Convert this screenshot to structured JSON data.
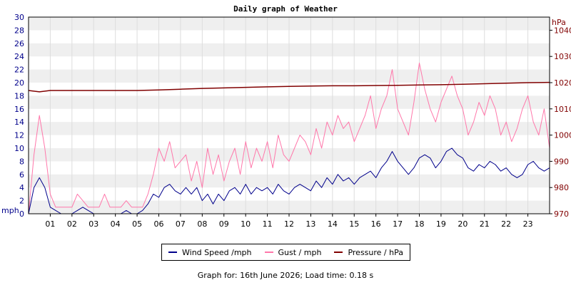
{
  "chart_data": {
    "type": "line",
    "title": "Daily graph of Weather",
    "left_axis": {
      "unit": "mph",
      "ylim": [
        0,
        30
      ],
      "ticks": [
        "0",
        "2",
        "4",
        "6",
        "8",
        "10",
        "12",
        "14",
        "16",
        "18",
        "20",
        "22",
        "24",
        "26",
        "28",
        "30"
      ],
      "color": "#00008b"
    },
    "right_axis": {
      "unit": "hPa",
      "ylim": [
        970,
        1045
      ],
      "ticks": [
        "970",
        "980",
        "990",
        "1000",
        "1010",
        "1020",
        "1030",
        "1040"
      ],
      "color": "#800000"
    },
    "x_ticks": [
      "01",
      "02",
      "03",
      "04",
      "05",
      "06",
      "07",
      "08",
      "09",
      "10",
      "11",
      "12",
      "13",
      "14",
      "15",
      "16",
      "17",
      "18",
      "19",
      "20",
      "21",
      "22",
      "23"
    ],
    "xlim": [
      0,
      24
    ],
    "grid": true,
    "legend_position": "bottom",
    "series": [
      {
        "name": "Wind Speed /mph",
        "axis": "left",
        "color": "#00008b",
        "x": [
          0,
          0.25,
          0.5,
          0.75,
          1,
          1.25,
          1.5,
          1.75,
          2,
          2.25,
          2.5,
          2.75,
          3,
          3.25,
          3.5,
          3.75,
          4,
          4.25,
          4.5,
          4.75,
          5,
          5.25,
          5.5,
          5.75,
          6,
          6.25,
          6.5,
          6.75,
          7,
          7.25,
          7.5,
          7.75,
          8,
          8.25,
          8.5,
          8.75,
          9,
          9.25,
          9.5,
          9.75,
          10,
          10.25,
          10.5,
          10.75,
          11,
          11.25,
          11.5,
          11.75,
          12,
          12.25,
          12.5,
          12.75,
          13,
          13.25,
          13.5,
          13.75,
          14,
          14.25,
          14.5,
          14.75,
          15,
          15.25,
          15.5,
          15.75,
          16,
          16.25,
          16.5,
          16.75,
          17,
          17.25,
          17.5,
          17.75,
          18,
          18.25,
          18.5,
          18.75,
          19,
          19.25,
          19.5,
          19.75,
          20,
          20.25,
          20.5,
          20.75,
          21,
          21.25,
          21.5,
          21.75,
          22,
          22.25,
          22.5,
          22.75,
          23,
          23.25,
          23.5,
          23.75,
          24
        ],
        "values": [
          0,
          4,
          5.5,
          4,
          1,
          0.5,
          0,
          0,
          0,
          0.5,
          1,
          0.5,
          0,
          0,
          0,
          0,
          0,
          0,
          0.5,
          0,
          0,
          0.5,
          1.5,
          3,
          2.5,
          4,
          4.5,
          3.5,
          3,
          4,
          3,
          4,
          2,
          3,
          1.5,
          3,
          2,
          3.5,
          4,
          3,
          4.5,
          3,
          4,
          3.5,
          4,
          3,
          4.5,
          3.5,
          3,
          4,
          4.5,
          4,
          3.5,
          5,
          4,
          5.5,
          4.5,
          6,
          5,
          5.5,
          4.5,
          5.5,
          6,
          6.5,
          5.5,
          7,
          8,
          9.5,
          8,
          7,
          6,
          7,
          8.5,
          9,
          8.5,
          7,
          8,
          9.5,
          10,
          9,
          8.5,
          7,
          6.5,
          7.5,
          7,
          8,
          7.5,
          6.5,
          7,
          6,
          5.5,
          6,
          7.5,
          8,
          7,
          6.5,
          7
        ]
      },
      {
        "name": "Gust / mph",
        "axis": "left",
        "color": "#ff77aa",
        "x": [
          0,
          0.25,
          0.5,
          0.75,
          1,
          1.25,
          1.5,
          1.75,
          2,
          2.25,
          2.5,
          2.75,
          3,
          3.25,
          3.5,
          3.75,
          4,
          4.25,
          4.5,
          4.75,
          5,
          5.25,
          5.5,
          5.75,
          6,
          6.25,
          6.5,
          6.75,
          7,
          7.25,
          7.5,
          7.75,
          8,
          8.25,
          8.5,
          8.75,
          9,
          9.25,
          9.5,
          9.75,
          10,
          10.25,
          10.5,
          10.75,
          11,
          11.25,
          11.5,
          11.75,
          12,
          12.25,
          12.5,
          12.75,
          13,
          13.25,
          13.5,
          13.75,
          14,
          14.25,
          14.5,
          14.75,
          15,
          15.25,
          15.5,
          15.75,
          16,
          16.25,
          16.5,
          16.75,
          17,
          17.25,
          17.5,
          17.75,
          18,
          18.25,
          18.5,
          18.75,
          19,
          19.25,
          19.5,
          19.75,
          20,
          20.25,
          20.5,
          20.75,
          21,
          21.25,
          21.5,
          21.75,
          22,
          22.25,
          22.5,
          22.75,
          23,
          23.25,
          23.5,
          23.75,
          24
        ],
        "values": [
          0,
          9,
          15,
          10,
          3,
          1,
          1,
          1,
          1,
          3,
          2,
          1,
          1,
          1,
          3,
          1,
          1,
          1,
          2,
          1,
          1,
          1,
          3,
          6,
          10,
          8,
          11,
          7,
          8,
          9,
          5,
          8,
          4,
          10,
          6,
          9,
          5,
          8,
          10,
          6,
          11,
          7,
          10,
          8,
          11,
          7,
          12,
          9,
          8,
          10,
          12,
          11,
          9,
          13,
          10,
          14,
          12,
          15,
          13,
          14,
          11,
          13,
          15,
          18,
          13,
          16,
          18,
          22,
          16,
          14,
          12,
          17,
          23,
          19,
          16,
          14,
          17,
          19,
          21,
          18,
          16,
          12,
          14,
          17,
          15,
          18,
          16,
          12,
          14,
          11,
          13,
          16,
          18,
          14,
          12,
          16,
          10
        ]
      },
      {
        "name": "Pressure / hPa",
        "axis": "right",
        "color": "#800000",
        "x": [
          0,
          0.5,
          1,
          2,
          3,
          4,
          5,
          6,
          7,
          8,
          9,
          10,
          11,
          12,
          13,
          14,
          15,
          16,
          17,
          18,
          19,
          20,
          21,
          22,
          23,
          24
        ],
        "values": [
          1017,
          1016.5,
          1017,
          1017,
          1017,
          1017,
          1017,
          1017.2,
          1017.5,
          1017.8,
          1018,
          1018.2,
          1018.4,
          1018.6,
          1018.7,
          1018.8,
          1018.8,
          1018.9,
          1019,
          1019.1,
          1019.2,
          1019.4,
          1019.6,
          1019.8,
          1020,
          1020.1
        ]
      }
    ]
  },
  "footer": "Graph for: 16th June 2026; Load time: 0.18 s"
}
